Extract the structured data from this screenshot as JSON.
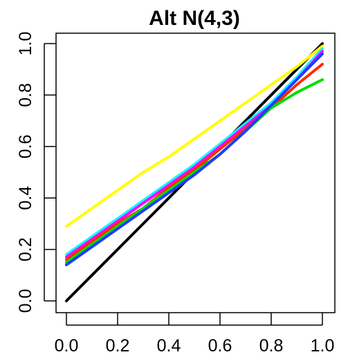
{
  "chart_data": {
    "type": "line",
    "title": "Alt N(4,3)",
    "xlabel": "",
    "ylabel": "",
    "xlim": [
      0,
      1
    ],
    "ylim": [
      0,
      1
    ],
    "grid": false,
    "legend": "none",
    "x_ticks": [
      "0.0",
      "0.2",
      "0.4",
      "0.6",
      "0.8",
      "1.0"
    ],
    "y_ticks": [
      "0.0",
      "0.2",
      "0.4",
      "0.6",
      "0.8",
      "1.0"
    ],
    "x": [
      0,
      0.1,
      0.2,
      0.3,
      0.4,
      0.5,
      0.6,
      0.7,
      0.8,
      0.9,
      1.0
    ],
    "series": [
      {
        "color": "#000000",
        "values": [
          0.0,
          0.1,
          0.2,
          0.3,
          0.4,
          0.5,
          0.6,
          0.7,
          0.8,
          0.9,
          1.0
        ]
      },
      {
        "color": "#ffff00",
        "values": [
          0.29,
          0.36,
          0.43,
          0.5,
          0.56,
          0.63,
          0.7,
          0.77,
          0.84,
          0.91,
          0.99
        ]
      },
      {
        "color": "#00ffff",
        "values": [
          0.18,
          0.25,
          0.32,
          0.39,
          0.46,
          0.53,
          0.61,
          0.69,
          0.77,
          0.87,
          0.98
        ]
      },
      {
        "color": "#ff00ff",
        "values": [
          0.17,
          0.24,
          0.31,
          0.38,
          0.45,
          0.52,
          0.6,
          0.68,
          0.76,
          0.86,
          0.97
        ]
      },
      {
        "color": "#ff2a00",
        "values": [
          0.16,
          0.23,
          0.3,
          0.36,
          0.44,
          0.51,
          0.59,
          0.67,
          0.75,
          0.84,
          0.92
        ]
      },
      {
        "color": "#00dd00",
        "values": [
          0.15,
          0.22,
          0.29,
          0.36,
          0.43,
          0.5,
          0.57,
          0.66,
          0.75,
          0.81,
          0.86
        ]
      },
      {
        "color": "#1e3cff",
        "values": [
          0.14,
          0.21,
          0.28,
          0.35,
          0.42,
          0.49,
          0.57,
          0.66,
          0.76,
          0.86,
          0.96
        ]
      }
    ]
  }
}
